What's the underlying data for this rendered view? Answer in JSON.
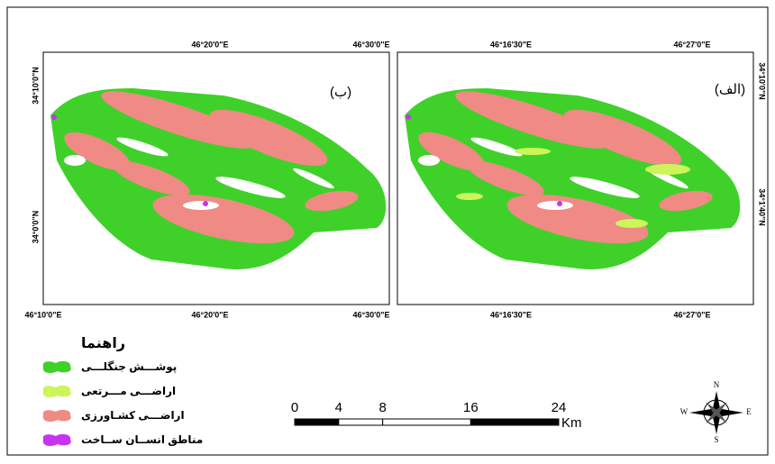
{
  "panels": [
    {
      "label": "(ب)",
      "top_labels": [
        "46°20'0\"E",
        "46°30'0\"E"
      ],
      "bottom_labels": [
        "46°10'0\"E",
        "46°20'0\"E",
        "46°30'0\"E"
      ],
      "side_labels": [
        "34°10'0\"N",
        "34°0'0\"N"
      ]
    },
    {
      "label": "(الف)",
      "top_labels": [
        "46°16'30\"E",
        "46°27'0\"E"
      ],
      "bottom_labels": [
        "46°16'30\"E",
        "46°27'0\"E"
      ],
      "side_labels": [
        "34°10'0\"N",
        "34°1'40\"N"
      ]
    }
  ],
  "legend": {
    "title": "راهنما",
    "items": [
      "پوشـــش جنگلـــی",
      "اراضـــی مـــرتعی",
      "اراضـــی کشـاورزی",
      "مناطق انســان ســاخت"
    ]
  },
  "scale_bar": {
    "ticks": [
      0,
      4,
      8,
      16,
      24
    ],
    "unit": "Km"
  },
  "north_arrow": {
    "n": "N",
    "e": "E",
    "s": "S",
    "w": "W"
  }
}
